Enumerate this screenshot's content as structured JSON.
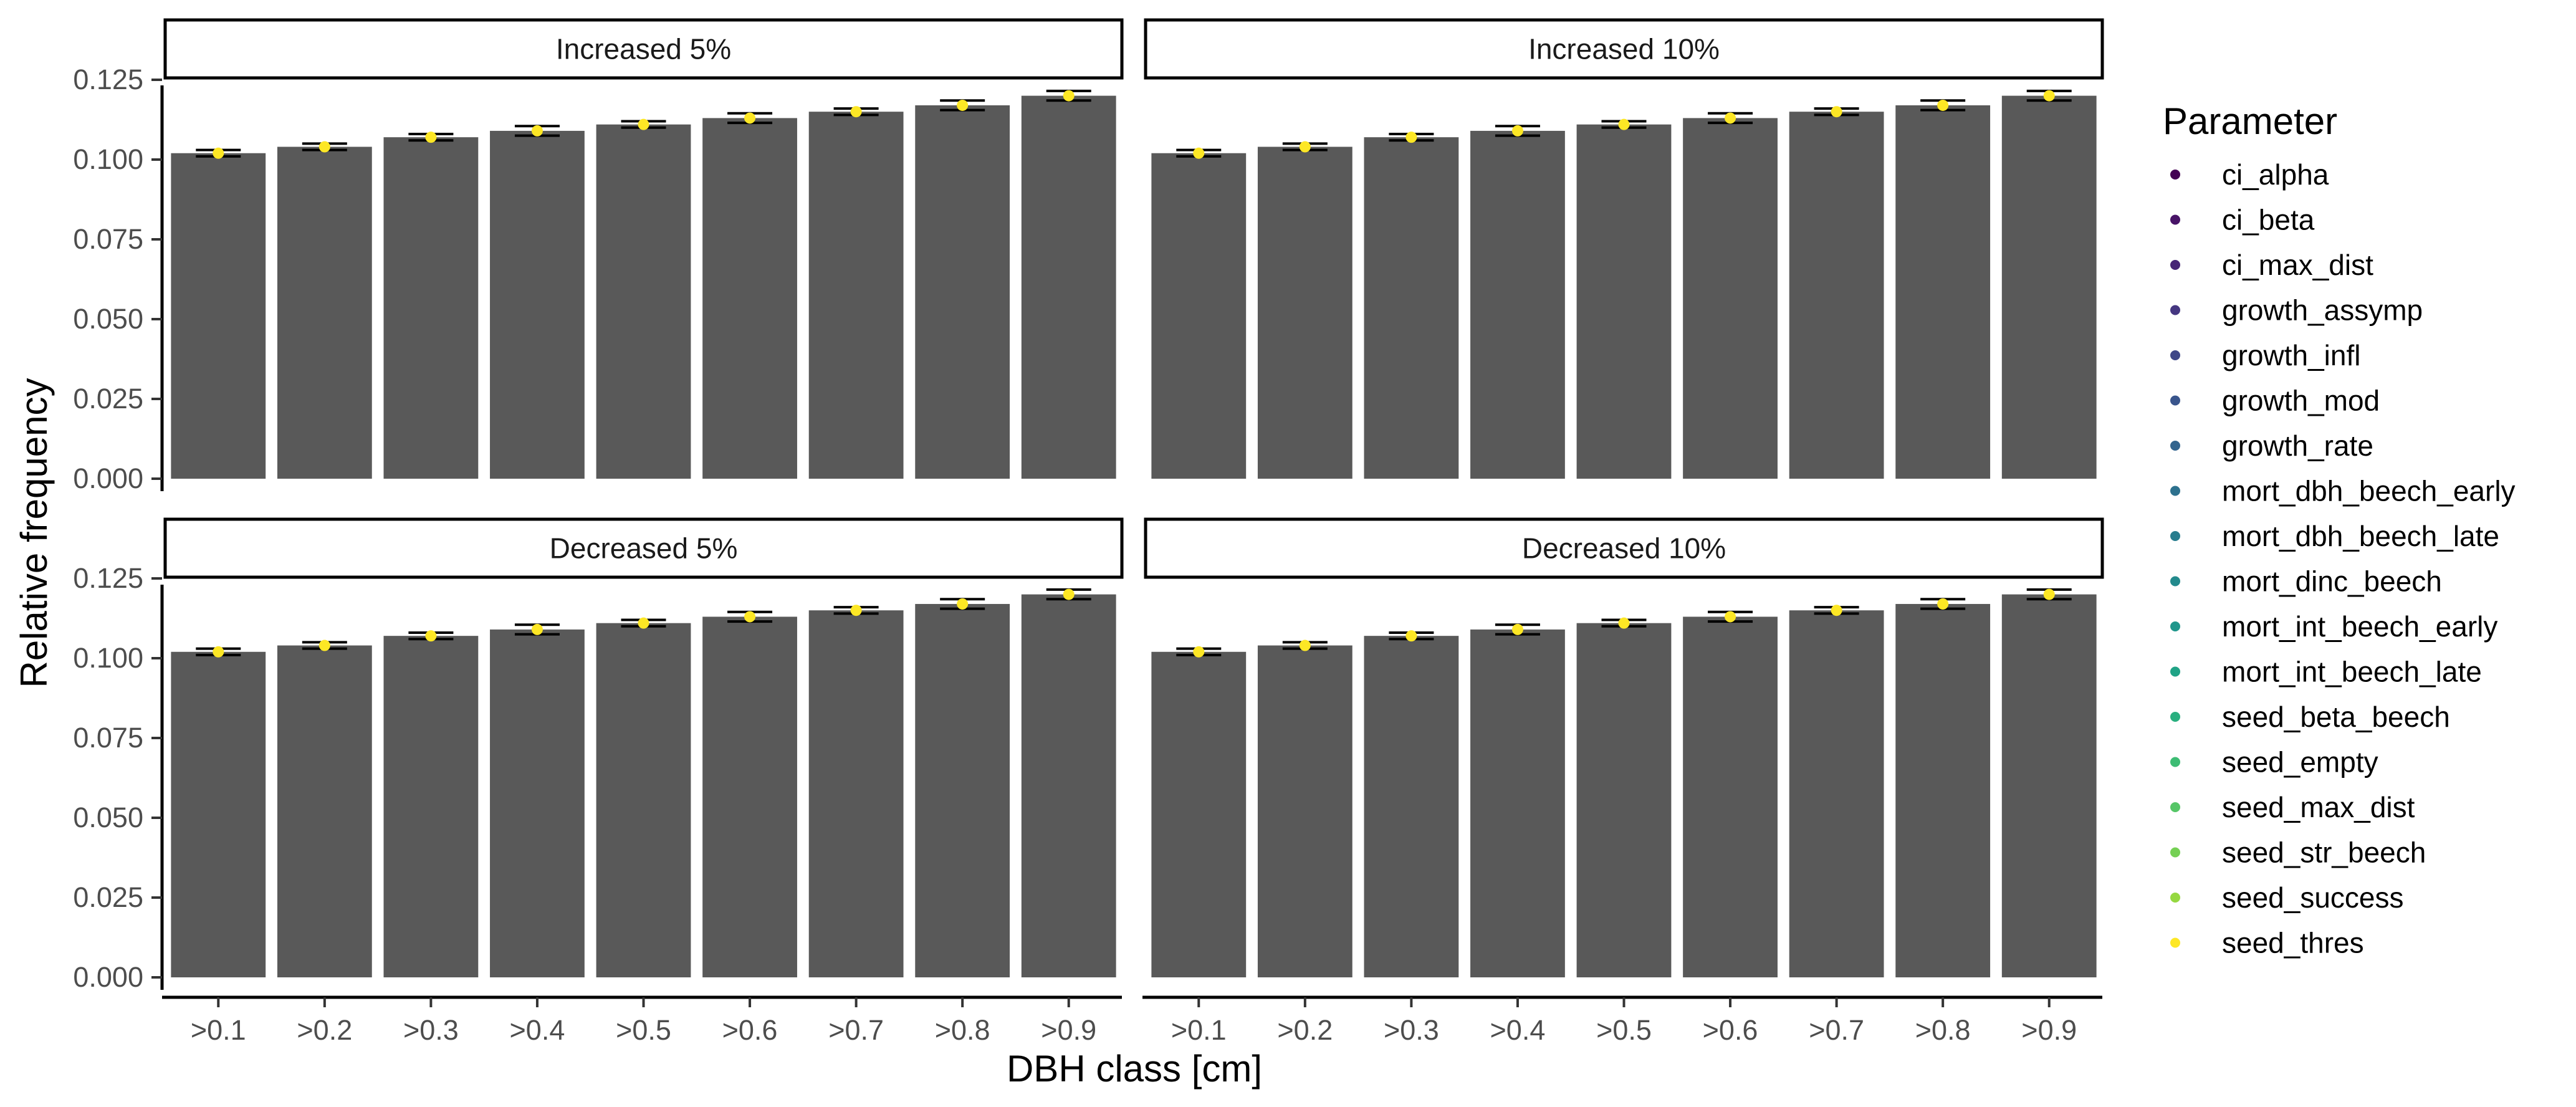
{
  "chart_data": {
    "type": "bar",
    "xlabel": "DBH class [cm]",
    "ylabel": "Relative frequency",
    "categories": [
      ">0.1",
      ">0.2",
      ">0.3",
      ">0.4",
      ">0.5",
      ">0.6",
      ">0.7",
      ">0.8",
      ">0.9"
    ],
    "yticks": [
      "0.000",
      "0.025",
      "0.050",
      "0.075",
      "0.100",
      "0.125"
    ],
    "ylim": [
      0,
      0.13
    ],
    "bar_color": "#595959",
    "grid": false,
    "legend": {
      "title": "Parameter",
      "placement": "right",
      "entries": [
        {
          "name": "ci_alpha",
          "color": "#440154"
        },
        {
          "name": "ci_beta",
          "color": "#481467"
        },
        {
          "name": "ci_max_dist",
          "color": "#482576"
        },
        {
          "name": "growth_assymp",
          "color": "#453781"
        },
        {
          "name": "growth_infl",
          "color": "#3F4788"
        },
        {
          "name": "growth_mod",
          "color": "#39558C"
        },
        {
          "name": "growth_rate",
          "color": "#32648E"
        },
        {
          "name": "mort_dbh_beech_early",
          "color": "#2D718E"
        },
        {
          "name": "mort_dbh_beech_late",
          "color": "#287D8E"
        },
        {
          "name": "mort_dinc_beech",
          "color": "#238A8D"
        },
        {
          "name": "mort_int_beech_early",
          "color": "#1F968B"
        },
        {
          "name": "mort_int_beech_late",
          "color": "#20A386"
        },
        {
          "name": "seed_beta_beech",
          "color": "#29AF7F"
        },
        {
          "name": "seed_empty",
          "color": "#3DBC74"
        },
        {
          "name": "seed_max_dist",
          "color": "#56C667"
        },
        {
          "name": "seed_str_beech",
          "color": "#75D054"
        },
        {
          "name": "seed_success",
          "color": "#95D840"
        },
        {
          "name": "seed_thres",
          "color": "#FDE725"
        }
      ]
    },
    "panels": [
      {
        "title": "Increased 5%",
        "values": [
          0.102,
          0.104,
          0.107,
          0.109,
          0.111,
          0.113,
          0.115,
          0.117,
          0.12
        ],
        "errors": [
          0.001,
          0.001,
          0.001,
          0.0015,
          0.001,
          0.0015,
          0.001,
          0.0015,
          0.0015
        ]
      },
      {
        "title": "Increased 10%",
        "values": [
          0.102,
          0.104,
          0.107,
          0.109,
          0.111,
          0.113,
          0.115,
          0.117,
          0.12
        ],
        "errors": [
          0.001,
          0.001,
          0.001,
          0.0015,
          0.001,
          0.0015,
          0.001,
          0.0015,
          0.0015
        ]
      },
      {
        "title": "Decreased 5%",
        "values": [
          0.102,
          0.104,
          0.107,
          0.109,
          0.111,
          0.113,
          0.115,
          0.117,
          0.12
        ],
        "errors": [
          0.001,
          0.001,
          0.001,
          0.0015,
          0.001,
          0.0015,
          0.001,
          0.0015,
          0.0015
        ]
      },
      {
        "title": "Decreased 10%",
        "values": [
          0.102,
          0.104,
          0.107,
          0.109,
          0.111,
          0.113,
          0.115,
          0.117,
          0.12
        ],
        "errors": [
          0.001,
          0.001,
          0.001,
          0.0015,
          0.001,
          0.0015,
          0.001,
          0.0015,
          0.0015
        ]
      }
    ]
  }
}
